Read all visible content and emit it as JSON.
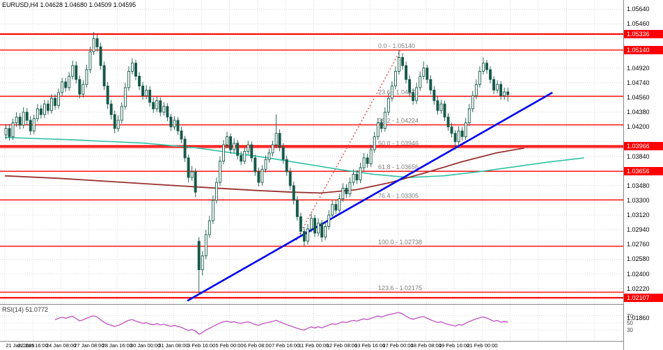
{
  "title_bar": {
    "info": "EURUSD,H4 1.04628 1.04680 1.04509 1.04595"
  },
  "chart_data": {
    "type": "candlestick",
    "symbol": "EURUSD",
    "timeframe": "H4",
    "ohlc_display": {
      "open": "1.04628",
      "high": "1.04680",
      "low": "1.04509",
      "close": "1.04595"
    },
    "price_range": {
      "top": 1.05753,
      "bottom": 1.0203
    },
    "y_ticks": [
      "1.05640",
      "1.05460",
      "1.05280",
      "1.05100",
      "1.04920",
      "1.04740",
      "1.04560",
      "1.04380",
      "1.04200",
      "1.04020",
      "1.03840",
      "1.03660",
      "1.03480",
      "1.03300",
      "1.03120",
      "1.02940",
      "1.02760",
      "1.02580",
      "1.02400",
      "1.02220",
      "1.02040",
      "1.01860"
    ],
    "x_labels": [
      "21 Jan 2025",
      "22 Jan 16:00",
      "24 Jan 08:00",
      "27 Jan 08:00",
      "28 Jan 16:00",
      "30 Jan 00:00",
      "31 Jan 08:00",
      "3 Feb 16:00",
      "5 Feb 00:00",
      "6 Feb 08:00",
      "7 Feb 16:00",
      "11 Feb 00:00",
      "12 Feb 08:00",
      "13 Feb 16:00",
      "17 Feb 00:00",
      "18 Feb 08:00",
      "19 Feb 16:00",
      "21 Feb 00:00"
    ],
    "fib_levels": [
      {
        "label": "0.0 - 1.05140",
        "price": 1.0514
      },
      {
        "label": "23.6 - 1.04575",
        "price": 1.04575
      },
      {
        "label": "38.2 - 1.04224",
        "price": 1.04224
      },
      {
        "label": "50.0 - 1.03946",
        "price": 1.03946
      },
      {
        "label": "61.8 - 1.03656",
        "price": 1.03656
      },
      {
        "label": "76.4 - 1.03305",
        "price": 1.03305
      },
      {
        "label": "100.0 - 1.02738",
        "price": 1.02738
      },
      {
        "label": "123.6 - 1.02175",
        "price": 1.02175
      }
    ],
    "extra_lines": [
      1.05336,
      1.03966,
      1.02107
    ],
    "axis_badges": [
      {
        "text": "1.05336",
        "price": 1.05336
      },
      {
        "text": "1.05140",
        "price": 1.0514
      },
      {
        "text": "1.03966",
        "price": 1.03966
      },
      {
        "text": "1.03656",
        "price": 1.03656
      },
      {
        "text": "1.02107",
        "price": 1.02107
      }
    ],
    "trendline": {
      "from": [
        52,
        1.0207
      ],
      "to": [
        156,
        1.0462
      ]
    },
    "dashed_trendline": {
      "from": [
        83,
        1.0281
      ],
      "to": [
        113,
        1.0516
      ]
    },
    "ma_teal": [
      [
        0,
        1.0407
      ],
      [
        20,
        1.0404
      ],
      [
        40,
        1.04
      ],
      [
        55,
        1.0394
      ],
      [
        65,
        1.0388
      ],
      [
        75,
        1.0382
      ],
      [
        85,
        1.0375
      ],
      [
        95,
        1.0368
      ],
      [
        105,
        1.0362
      ],
      [
        115,
        1.0358
      ],
      [
        125,
        1.036
      ],
      [
        135,
        1.0365
      ],
      [
        145,
        1.0371
      ],
      [
        155,
        1.0377
      ],
      [
        165,
        1.0382
      ]
    ],
    "ma_darkred": [
      [
        0,
        1.036
      ],
      [
        15,
        1.0357
      ],
      [
        30,
        1.0353
      ],
      [
        45,
        1.0349
      ],
      [
        60,
        1.0345
      ],
      [
        72,
        1.0342
      ],
      [
        82,
        1.034
      ],
      [
        90,
        1.0339
      ],
      [
        100,
        1.0343
      ],
      [
        110,
        1.0352
      ],
      [
        120,
        1.0364
      ],
      [
        130,
        1.0377
      ],
      [
        140,
        1.0388
      ],
      [
        148,
        1.0394
      ]
    ],
    "rsi": {
      "label": "RSI(14)",
      "value": "51.0772",
      "display": "RSI(14) 51.0772",
      "period": 14,
      "levels": [
        70,
        50,
        30
      ]
    },
    "candles": [
      [
        1.041,
        1.0423,
        1.0405,
        1.0418
      ],
      [
        1.0418,
        1.0423,
        1.0403,
        1.0408
      ],
      [
        1.0408,
        1.043,
        1.0404,
        1.0425
      ],
      [
        1.0425,
        1.0438,
        1.042,
        1.0432
      ],
      [
        1.0432,
        1.0437,
        1.0417,
        1.0422
      ],
      [
        1.0422,
        1.0444,
        1.0418,
        1.0438
      ],
      [
        1.0438,
        1.0443,
        1.0423,
        1.0428
      ],
      [
        1.0428,
        1.0433,
        1.041,
        1.0415
      ],
      [
        1.0415,
        1.0435,
        1.0411,
        1.043
      ],
      [
        1.043,
        1.0448,
        1.0426,
        1.0442
      ],
      [
        1.0442,
        1.0447,
        1.043,
        1.0435
      ],
      [
        1.0435,
        1.0453,
        1.0431,
        1.0448
      ],
      [
        1.0448,
        1.0453,
        1.0435,
        1.044
      ],
      [
        1.044,
        1.046,
        1.0436,
        1.0455
      ],
      [
        1.0455,
        1.046,
        1.0441,
        1.0446
      ],
      [
        1.0446,
        1.0467,
        1.0442,
        1.0462
      ],
      [
        1.0462,
        1.048,
        1.0458,
        1.0475
      ],
      [
        1.0475,
        1.048,
        1.0463,
        1.0468
      ],
      [
        1.0468,
        1.0487,
        1.0464,
        1.0482
      ],
      [
        1.0482,
        1.0501,
        1.0478,
        1.0495
      ],
      [
        1.0495,
        1.05,
        1.0473,
        1.0478
      ],
      [
        1.0478,
        1.0483,
        1.0455,
        1.046
      ],
      [
        1.046,
        1.0477,
        1.0456,
        1.0472
      ],
      [
        1.0472,
        1.0496,
        1.0468,
        1.049
      ],
      [
        1.049,
        1.0518,
        1.0486,
        1.0512
      ],
      [
        1.0512,
        1.0536,
        1.0508,
        1.0528
      ],
      [
        1.0528,
        1.0533,
        1.0512,
        1.0518
      ],
      [
        1.0518,
        1.0523,
        1.049,
        1.0495
      ],
      [
        1.0495,
        1.05,
        1.0465,
        1.047
      ],
      [
        1.047,
        1.0475,
        1.0442,
        1.0448
      ],
      [
        1.0448,
        1.0453,
        1.0429,
        1.0435
      ],
      [
        1.0435,
        1.044,
        1.0412,
        1.0418
      ],
      [
        1.0418,
        1.0434,
        1.0414,
        1.0428
      ],
      [
        1.0428,
        1.045,
        1.0424,
        1.0445
      ],
      [
        1.0445,
        1.0474,
        1.0441,
        1.0468
      ],
      [
        1.0468,
        1.0494,
        1.0464,
        1.0488
      ],
      [
        1.0488,
        1.0504,
        1.0484,
        1.0498
      ],
      [
        1.0498,
        1.0502,
        1.0477,
        1.0482
      ],
      [
        1.0482,
        1.0487,
        1.0465,
        1.047
      ],
      [
        1.047,
        1.0475,
        1.0453,
        1.0458
      ],
      [
        1.0458,
        1.0471,
        1.0454,
        1.0465
      ],
      [
        1.0465,
        1.047,
        1.0445,
        1.045
      ],
      [
        1.045,
        1.0456,
        1.0437,
        1.0442
      ],
      [
        1.0442,
        1.0457,
        1.0438,
        1.0452
      ],
      [
        1.0452,
        1.0456,
        1.0433,
        1.0438
      ],
      [
        1.0438,
        1.045,
        1.0434,
        1.0445
      ],
      [
        1.0445,
        1.0449,
        1.0427,
        1.0432
      ],
      [
        1.0432,
        1.0436,
        1.0415,
        1.042
      ],
      [
        1.042,
        1.0433,
        1.0416,
        1.0428
      ],
      [
        1.0428,
        1.0432,
        1.041,
        1.0415
      ],
      [
        1.0415,
        1.042,
        1.04,
        1.0405
      ],
      [
        1.0405,
        1.0409,
        1.0377,
        1.0382
      ],
      [
        1.0382,
        1.0386,
        1.0352,
        1.0358
      ],
      [
        1.0358,
        1.0372,
        1.0354,
        1.0365
      ],
      [
        1.0365,
        1.0369,
        1.0334,
        1.034
      ],
      [
        1.028,
        1.0285,
        1.0214,
        1.0245
      ],
      [
        1.0245,
        1.0268,
        1.0238,
        1.0262
      ],
      [
        1.0262,
        1.0294,
        1.0258,
        1.0288
      ],
      [
        1.0288,
        1.0311,
        1.0284,
        1.0305
      ],
      [
        1.0305,
        1.0336,
        1.0301,
        1.033
      ],
      [
        1.033,
        1.0358,
        1.0326,
        1.0352
      ],
      [
        1.0352,
        1.0384,
        1.0348,
        1.0378
      ],
      [
        1.0378,
        1.0404,
        1.0374,
        1.0398
      ],
      [
        1.0398,
        1.0414,
        1.0394,
        1.0408
      ],
      [
        1.0408,
        1.0412,
        1.0387,
        1.0392
      ],
      [
        1.0392,
        1.0406,
        1.0388,
        1.04
      ],
      [
        1.04,
        1.0404,
        1.038,
        1.0385
      ],
      [
        1.0385,
        1.039,
        1.0373,
        1.0378
      ],
      [
        1.0378,
        1.0395,
        1.0374,
        1.039
      ],
      [
        1.039,
        1.0403,
        1.0386,
        1.0398
      ],
      [
        1.0398,
        1.0402,
        1.0377,
        1.0382
      ],
      [
        1.0382,
        1.0386,
        1.036,
        1.0365
      ],
      [
        1.0365,
        1.037,
        1.0347,
        1.0352
      ],
      [
        1.0352,
        1.0373,
        1.0348,
        1.0368
      ],
      [
        1.0368,
        1.0385,
        1.0364,
        1.038
      ],
      [
        1.038,
        1.0393,
        1.0376,
        1.0388
      ],
      [
        1.0388,
        1.0403,
        1.0384,
        1.0398
      ],
      [
        1.0398,
        1.0435,
        1.0394,
        1.0412
      ],
      [
        1.0412,
        1.0417,
        1.039,
        1.0395
      ],
      [
        1.0395,
        1.04,
        1.0375,
        1.038
      ],
      [
        1.038,
        1.0385,
        1.036,
        1.0365
      ],
      [
        1.0365,
        1.037,
        1.0343,
        1.0348
      ],
      [
        1.0348,
        1.0353,
        1.0325,
        1.033
      ],
      [
        1.033,
        1.0335,
        1.0305,
        1.031
      ],
      [
        1.031,
        1.0315,
        1.0287,
        1.0292
      ],
      [
        1.0292,
        1.0297,
        1.0274,
        1.028
      ],
      [
        1.028,
        1.0301,
        1.0276,
        1.0295
      ],
      [
        1.0295,
        1.0314,
        1.0291,
        1.0308
      ],
      [
        1.0308,
        1.0312,
        1.0285,
        1.029
      ],
      [
        1.029,
        1.0308,
        1.0286,
        1.0302
      ],
      [
        1.0302,
        1.0306,
        1.0279,
        1.0285
      ],
      [
        1.0285,
        1.0304,
        1.0281,
        1.0298
      ],
      [
        1.0298,
        1.0318,
        1.0294,
        1.0312
      ],
      [
        1.0312,
        1.0331,
        1.0308,
        1.0325
      ],
      [
        1.0325,
        1.033,
        1.0313,
        1.0318
      ],
      [
        1.0318,
        1.0338,
        1.0314,
        1.0332
      ],
      [
        1.0332,
        1.0351,
        1.0328,
        1.0345
      ],
      [
        1.0345,
        1.035,
        1.0333,
        1.0338
      ],
      [
        1.0338,
        1.0358,
        1.0334,
        1.0352
      ],
      [
        1.0352,
        1.0368,
        1.0348,
        1.0362
      ],
      [
        1.0362,
        1.0367,
        1.035,
        1.0355
      ],
      [
        1.0355,
        1.0376,
        1.0351,
        1.037
      ],
      [
        1.037,
        1.0388,
        1.0366,
        1.0382
      ],
      [
        1.0382,
        1.0387,
        1.037,
        1.0375
      ],
      [
        1.0375,
        1.0398,
        1.0371,
        1.0392
      ],
      [
        1.0392,
        1.0414,
        1.0388,
        1.0408
      ],
      [
        1.0408,
        1.0431,
        1.0404,
        1.0425
      ],
      [
        1.0425,
        1.043,
        1.0413,
        1.0418
      ],
      [
        1.0418,
        1.0444,
        1.0414,
        1.0438
      ],
      [
        1.0438,
        1.0461,
        1.0434,
        1.0455
      ],
      [
        1.0455,
        1.0476,
        1.0451,
        1.047
      ],
      [
        1.047,
        1.0494,
        1.0466,
        1.0488
      ],
      [
        1.0488,
        1.0514,
        1.0484,
        1.0505
      ],
      [
        1.0505,
        1.051,
        1.049,
        1.0495
      ],
      [
        1.0495,
        1.05,
        1.0473,
        1.0478
      ],
      [
        1.0478,
        1.0483,
        1.0457,
        1.0462
      ],
      [
        1.0462,
        1.0467,
        1.0447,
        1.0452
      ],
      [
        1.0452,
        1.0474,
        1.0448,
        1.0468
      ],
      [
        1.0468,
        1.0488,
        1.0464,
        1.0482
      ],
      [
        1.0482,
        1.05,
        1.0478,
        1.0492
      ],
      [
        1.0492,
        1.0496,
        1.0473,
        1.0478
      ],
      [
        1.0478,
        1.0483,
        1.046,
        1.0465
      ],
      [
        1.0465,
        1.047,
        1.0447,
        1.0452
      ],
      [
        1.0452,
        1.0457,
        1.0435,
        1.044
      ],
      [
        1.044,
        1.0453,
        1.0436,
        1.0448
      ],
      [
        1.0448,
        1.0452,
        1.0427,
        1.0432
      ],
      [
        1.0432,
        1.0437,
        1.0415,
        1.042
      ],
      [
        1.042,
        1.0425,
        1.0407,
        1.0412
      ],
      [
        1.0412,
        1.0416,
        1.0392,
        1.0402
      ],
      [
        1.0402,
        1.0421,
        1.0398,
        1.0415
      ],
      [
        1.0415,
        1.042,
        1.0403,
        1.0408
      ],
      [
        1.0408,
        1.0431,
        1.0404,
        1.0425
      ],
      [
        1.0425,
        1.0448,
        1.0421,
        1.0442
      ],
      [
        1.0442,
        1.0464,
        1.0438,
        1.0458
      ],
      [
        1.0458,
        1.0478,
        1.0454,
        1.0472
      ],
      [
        1.0472,
        1.0494,
        1.0468,
        1.0488
      ],
      [
        1.0488,
        1.0505,
        1.0484,
        1.0498
      ],
      [
        1.0498,
        1.0502,
        1.0485,
        1.049
      ],
      [
        1.049,
        1.0494,
        1.0473,
        1.0478
      ],
      [
        1.0478,
        1.0482,
        1.046,
        1.0465
      ],
      [
        1.0465,
        1.0477,
        1.0461,
        1.0472
      ],
      [
        1.0472,
        1.0476,
        1.0453,
        1.0458
      ],
      [
        1.0458,
        1.0468,
        1.0453,
        1.04628
      ],
      [
        1.04628,
        1.0468,
        1.04509,
        1.04595
      ]
    ],
    "colors": {
      "grid": "#d9d9d9",
      "fib_line": "#ff0000",
      "fib_label": "#7d7d7d",
      "candle_up": "#ffffff",
      "candle_down": "#175949",
      "candle_stroke": "#175949",
      "ma_fast": "#2fc1a4",
      "ma_slow": "#99312f",
      "trendline": "#0000ee",
      "dashed_line": "#e06060",
      "rsi_line": "#c050c0",
      "badge_bg": "#ff0000",
      "badge_text": "#ffffff"
    }
  }
}
